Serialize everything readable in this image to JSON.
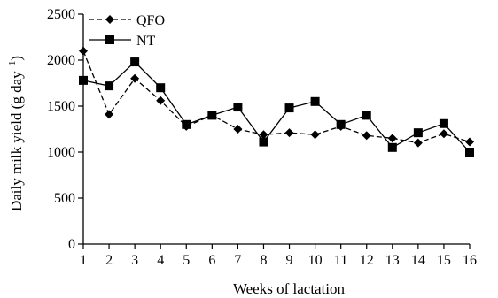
{
  "chart_data": {
    "type": "line",
    "xlabel": "Weeks of lactation",
    "ylabel_main": "Daily milk yield (g day",
    "ylabel_sup": "−1",
    "ylabel_close": ")",
    "ylim": [
      0,
      2500
    ],
    "yticks": [
      0,
      500,
      1000,
      1500,
      2000,
      2500
    ],
    "ytick_labels": [
      "0",
      "500",
      "1000",
      "1500",
      "2000",
      "2500"
    ],
    "x": [
      1,
      2,
      3,
      4,
      5,
      6,
      7,
      8,
      9,
      10,
      11,
      12,
      13,
      14,
      15,
      16
    ],
    "xtick_labels": [
      "1",
      "2",
      "3",
      "4",
      "5",
      "6",
      "7",
      "8",
      "9",
      "10",
      "11",
      "12",
      "13",
      "14",
      "15",
      "16"
    ],
    "grid": false,
    "legend_position": "top-left",
    "series": [
      {
        "name": "QFO",
        "marker": "diamond",
        "line_style": "dashed",
        "color": "#000000",
        "values": [
          2100,
          1410,
          1800,
          1560,
          1280,
          1400,
          1250,
          1190,
          1210,
          1190,
          1280,
          1180,
          1150,
          1100,
          1200,
          1110
        ]
      },
      {
        "name": "NT",
        "marker": "square",
        "line_style": "solid",
        "color": "#000000",
        "values": [
          1780,
          1720,
          1980,
          1700,
          1300,
          1400,
          1490,
          1110,
          1480,
          1550,
          1300,
          1400,
          1050,
          1210,
          1310,
          1000
        ]
      }
    ]
  }
}
